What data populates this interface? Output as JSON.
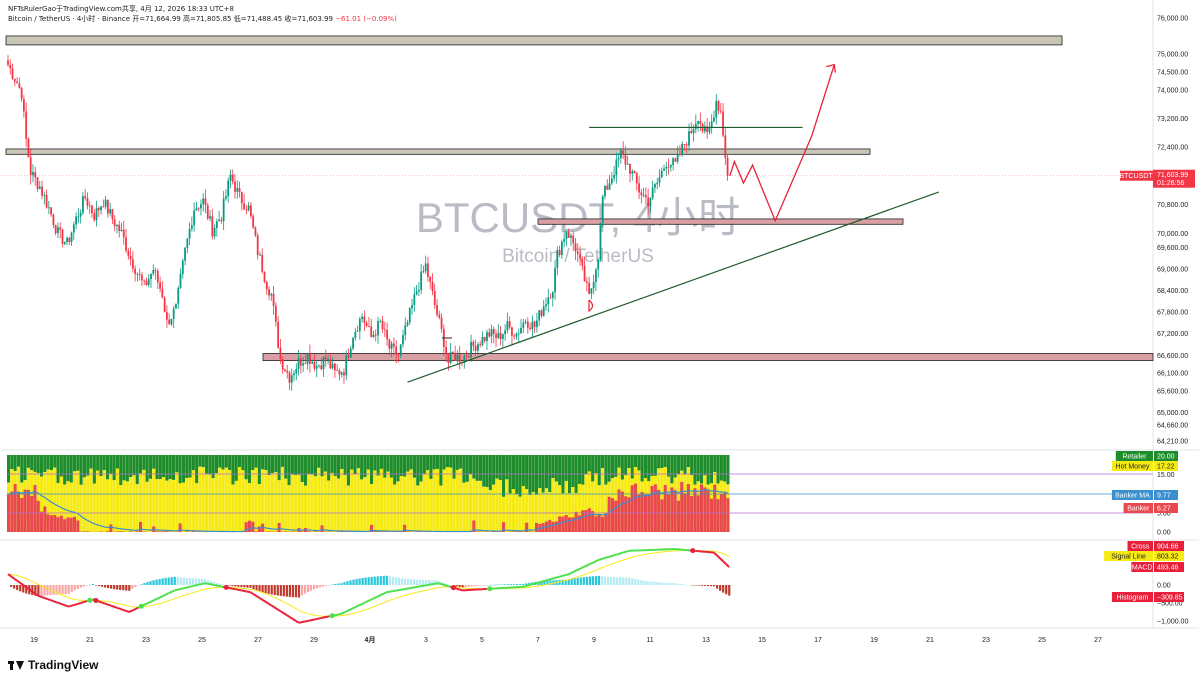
{
  "header": {
    "info": "NFTsRulerGao于TradingView.com共享, 4月 12, 2026 18:33 UTC+8",
    "symbol": "Bitcoin / TetherUS · 4小时 · Binance",
    "open": "开=71,664.99",
    "high": "高=71,805.85",
    "low": "低=71,488.45",
    "close": "收=71,603.99",
    "change": "−61.01 (−0.09%)"
  },
  "watermark": {
    "title": "BTCUSDT, 4小时",
    "subtitle": "Bitcoin / TetherUS"
  },
  "footer": {
    "brand": "TradingView"
  },
  "colors": {
    "up": "#089981",
    "down": "#f23645",
    "annotation": "#e8203a",
    "zone_red": "#d8a0a4",
    "zone_grey": "#c9c6b8",
    "trendline": "#1e5b2e",
    "retailer_bar": "#1e8c2a",
    "hot_money_bar": "#f5ea14",
    "banker_bar": "#e8494f",
    "banker_ma": "#3a8fd0"
  },
  "price_axis": {
    "ticks": [
      "76,000.00",
      "75,000.00",
      "74,500.00",
      "74,000.00",
      "73,200.00",
      "72,400.00",
      "71,603.99",
      "70,800.00",
      "70,000.00",
      "69,600.00",
      "69,000.00",
      "68,400.00",
      "67,800.00",
      "67,200.00",
      "66,600.00",
      "66,100.00",
      "65,600.00",
      "65,000.00",
      "64,660.00",
      "64,210.00"
    ],
    "last_price_label": "BTCUSDT",
    "last_price": "71,603.99",
    "countdown": "01:26:56"
  },
  "time_axis": [
    "19",
    "21",
    "23",
    "25",
    "27",
    "29",
    "4月",
    "3",
    "5",
    "7",
    "9",
    "11",
    "13",
    "15",
    "17",
    "19",
    "21",
    "23",
    "25",
    "27"
  ],
  "indicator1": {
    "ticks": [
      "15.00",
      "5.00",
      "0.00"
    ],
    "labels": [
      {
        "name": "Retailer",
        "value": "20.00",
        "color": "#1e8c2a",
        "text": "#fff"
      },
      {
        "name": "Hot Money",
        "value": "17.22",
        "color": "#f5ea14",
        "text": "#222"
      },
      {
        "name": "Banker MA",
        "value": "9.77",
        "color": "#3a8fd0",
        "text": "#fff"
      },
      {
        "name": "Banker",
        "value": "6.27",
        "color": "#e8494f",
        "text": "#fff"
      }
    ]
  },
  "indicator2": {
    "ticks": [
      "500.00",
      "0.00",
      "−500.00",
      "−1,000.00"
    ],
    "labels": [
      {
        "name": "Cross",
        "value": "904.66",
        "color": "#e8203a",
        "text": "#fff"
      },
      {
        "name": "Signal Line",
        "value": "803.32",
        "color": "#f5ea14",
        "text": "#222"
      },
      {
        "name": "MACD",
        "value": "493.46",
        "color": "#e8203a",
        "text": "#fff"
      },
      {
        "name": "Histogram",
        "value": "−309.85",
        "color": "#e8203a",
        "text": "#fff"
      }
    ]
  },
  "chart_data": {
    "type": "candlestick",
    "symbol": "BTCUSDT",
    "timeframe": "4h",
    "exchange": "Binance",
    "ohlc_last": {
      "open": 71664.99,
      "high": 71805.85,
      "low": 71488.45,
      "close": 71603.99,
      "change": -61.01,
      "change_pct": -0.09
    },
    "anchors": [
      [
        0,
        74700
      ],
      [
        4,
        74200
      ],
      [
        6,
        73900
      ],
      [
        8,
        72600
      ],
      [
        10,
        71700
      ],
      [
        14,
        71300
      ],
      [
        18,
        70700
      ],
      [
        22,
        70000
      ],
      [
        26,
        69700
      ],
      [
        30,
        70400
      ],
      [
        34,
        71000
      ],
      [
        38,
        70500
      ],
      [
        42,
        70900
      ],
      [
        46,
        70400
      ],
      [
        50,
        70000
      ],
      [
        54,
        69300
      ],
      [
        60,
        68500
      ],
      [
        64,
        69000
      ],
      [
        68,
        68300
      ],
      [
        70,
        67500
      ],
      [
        74,
        67900
      ],
      [
        78,
        69500
      ],
      [
        82,
        70700
      ],
      [
        86,
        70900
      ],
      [
        90,
        70100
      ],
      [
        94,
        70500
      ],
      [
        98,
        71600
      ],
      [
        102,
        71000
      ],
      [
        106,
        70700
      ],
      [
        110,
        69500
      ],
      [
        114,
        68600
      ],
      [
        116,
        68300
      ],
      [
        118,
        67400
      ],
      [
        120,
        66500
      ],
      [
        124,
        66000
      ],
      [
        128,
        66400
      ],
      [
        132,
        66600
      ],
      [
        136,
        66300
      ],
      [
        140,
        66500
      ],
      [
        144,
        66100
      ],
      [
        148,
        66200
      ],
      [
        152,
        67200
      ],
      [
        156,
        67700
      ],
      [
        160,
        67100
      ],
      [
        164,
        67500
      ],
      [
        168,
        66800
      ],
      [
        172,
        66600
      ],
      [
        176,
        67500
      ],
      [
        180,
        68400
      ],
      [
        184,
        69100
      ],
      [
        188,
        68000
      ],
      [
        192,
        67000
      ],
      [
        194,
        66400
      ],
      [
        196,
        66600
      ],
      [
        200,
        66500
      ],
      [
        204,
        66800
      ],
      [
        208,
        67000
      ],
      [
        212,
        67200
      ],
      [
        216,
        67100
      ],
      [
        220,
        67400
      ],
      [
        224,
        67200
      ],
      [
        228,
        67600
      ],
      [
        232,
        67400
      ],
      [
        236,
        68000
      ],
      [
        240,
        68500
      ],
      [
        242,
        69400
      ],
      [
        246,
        70100
      ],
      [
        250,
        69600
      ],
      [
        254,
        68700
      ],
      [
        256,
        68200
      ],
      [
        260,
        69400
      ],
      [
        262,
        71000
      ],
      [
        266,
        71600
      ],
      [
        270,
        72200
      ],
      [
        274,
        71800
      ],
      [
        278,
        71200
      ],
      [
        282,
        70900
      ],
      [
        286,
        71400
      ],
      [
        290,
        72000
      ],
      [
        294,
        71900
      ],
      [
        298,
        72500
      ],
      [
        300,
        72700
      ],
      [
        304,
        73300
      ],
      [
        306,
        72900
      ],
      [
        308,
        72700
      ],
      [
        310,
        73100
      ],
      [
        312,
        73700
      ],
      [
        314,
        73400
      ],
      [
        316,
        72200
      ],
      [
        317,
        71604
      ]
    ],
    "n_candles": 318,
    "price_range": [
      64000,
      76200
    ],
    "zones": [
      {
        "top": 75500,
        "bottom": 75250,
        "color": "#c9c6b8"
      },
      {
        "top": 72350,
        "bottom": 72200,
        "color": "#c9c6b8"
      },
      {
        "top": 70400,
        "bottom": 70250,
        "color": "#d8a0a4"
      },
      {
        "top": 66650,
        "bottom": 66450,
        "color": "#d8a0a4"
      }
    ],
    "trendline": {
      "from": [
        176,
        65850
      ],
      "to": [
        410,
        71150
      ]
    },
    "resistance_line": {
      "from": [
        256,
        72950
      ],
      "to": [
        350,
        72950
      ]
    },
    "projection_path": [
      [
        318,
        71600
      ],
      [
        320,
        72000
      ],
      [
        324,
        71400
      ],
      [
        328,
        71900
      ],
      [
        338,
        70350
      ],
      [
        354,
        72700
      ],
      [
        364,
        74700
      ]
    ],
    "series": [
      {
        "name": "Retailer",
        "value": 20.0
      },
      {
        "name": "Hot Money",
        "value": 17.22
      },
      {
        "name": "Banker MA",
        "value": 9.77
      },
      {
        "name": "Banker",
        "value": 6.27
      },
      {
        "name": "Cross",
        "value": 904.66
      },
      {
        "name": "Signal Line",
        "value": 803.32
      },
      {
        "name": "MACD",
        "value": 493.46
      },
      {
        "name": "Histogram",
        "value": -309.85
      }
    ]
  }
}
